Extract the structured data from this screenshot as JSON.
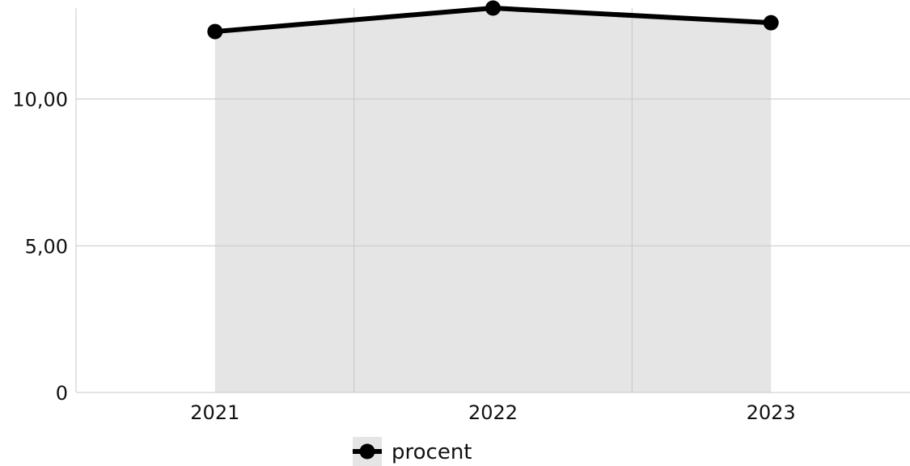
{
  "chart_data": {
    "type": "area",
    "categories": [
      "2021",
      "2022",
      "2023"
    ],
    "series": [
      {
        "name": "procent",
        "values": [
          12.3,
          13.1,
          12.6
        ]
      }
    ],
    "ylim": [
      0,
      13.1
    ],
    "y_ticks": [
      0,
      5,
      10
    ],
    "y_tick_labels": [
      "0",
      "5,00",
      "10,00"
    ],
    "grid": true,
    "legend": "bottom-center",
    "colors": {
      "line": "#000000",
      "fill": "#e5e5e5",
      "grid": "#c8c8c8"
    }
  }
}
